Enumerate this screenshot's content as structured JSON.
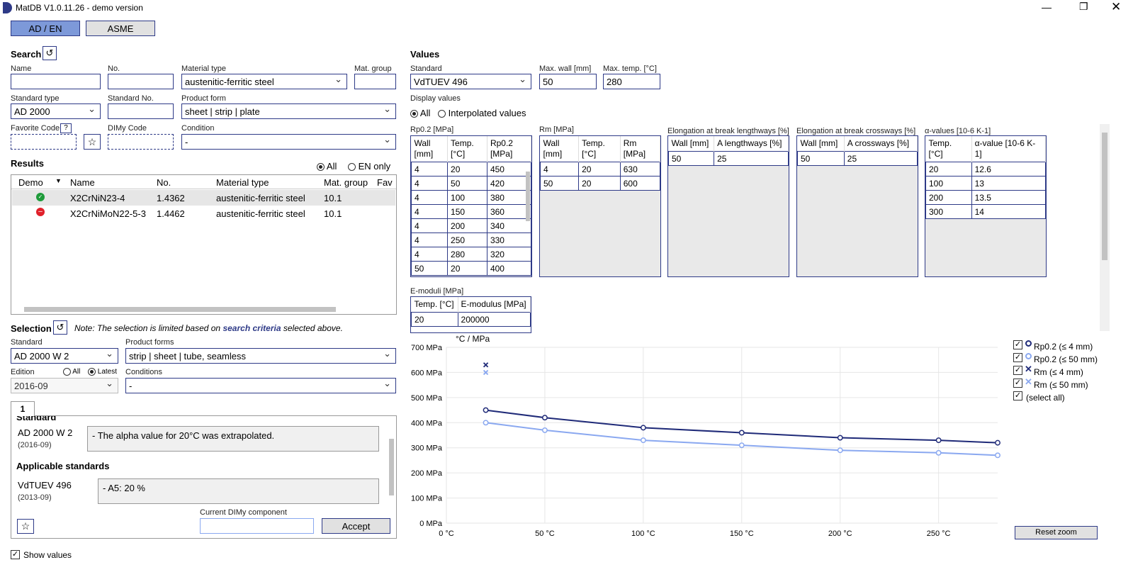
{
  "window": {
    "title": "MatDB V1.0.11.26 - demo version"
  },
  "mode_tabs": [
    "AD / EN",
    "ASME"
  ],
  "search": {
    "title": "Search",
    "name_label": "Name",
    "name_value": "",
    "no_label": "No.",
    "no_value": "",
    "material_type_label": "Material type",
    "material_type_value": "austenitic-ferritic steel",
    "mat_group_label": "Mat. group",
    "mat_group_value": "",
    "standard_type_label": "Standard type",
    "standard_type_value": "AD 2000",
    "standard_no_label": "Standard No.",
    "standard_no_value": "",
    "product_form_label": "Product form",
    "product_form_value": "sheet | strip | plate",
    "favorite_code_label": "Favorite Code",
    "favorite_code_help": "?",
    "dimy_code_label": "DIMy Code",
    "condition_label": "Condition",
    "condition_value": "-"
  },
  "results": {
    "title": "Results",
    "filter_all": "All",
    "filter_en_only": "EN only",
    "columns": [
      "Demo",
      "Name",
      "No.",
      "Material type",
      "Mat. group",
      "Fav"
    ],
    "rows": [
      {
        "demo": "available",
        "name": "X2CrNiN23-4",
        "no": "1.4362",
        "type": "austenitic-ferritic steel",
        "group": "10.1"
      },
      {
        "demo": "unavailable",
        "name": "X2CrNiMoN22-5-3",
        "no": "1.4462",
        "type": "austenitic-ferritic steel",
        "group": "10.1"
      }
    ]
  },
  "selection": {
    "title": "Selection",
    "note_prefix": "Note: The selection is limited based on ",
    "note_link": "search criteria",
    "note_suffix": " selected above.",
    "standard_label": "Standard",
    "standard_value": "AD 2000 W 2",
    "product_forms_label": "Product forms",
    "product_forms_value": "strip | sheet | tube, seamless",
    "edition_label": "Edition",
    "edition_all": "All",
    "edition_latest": "Latest",
    "edition_value": "2016-09",
    "conditions_label": "Conditions",
    "conditions_value": "-",
    "tab": "1",
    "standard_heading": "Standard",
    "std_name": "AD 2000 W 2",
    "std_date": "(2016-09)",
    "std_note": "- The alpha value for 20°C was extrapolated.",
    "applicable_heading": "Applicable standards",
    "app_name": "VdTUEV 496",
    "app_date": "(2013-09)",
    "app_note": "- A5: 20 %",
    "dimy_label": "Current DIMy component",
    "dimy_value": "",
    "accept_label": "Accept",
    "show_values": "Show values"
  },
  "values": {
    "title": "Values",
    "standard_label": "Standard",
    "standard_value": "VdTUEV 496",
    "max_wall_label": "Max. wall [mm]",
    "max_wall_value": "50",
    "max_temp_label": "Max. temp. [°C]",
    "max_temp_value": "280",
    "display_label": "Display values",
    "display_all": "All",
    "display_interp": "Interpolated values",
    "rp_title": "Rp0.2 [MPa]",
    "rp_head": [
      "Wall [mm]",
      "Temp. [°C]",
      "Rp0.2 [MPa]"
    ],
    "rp_rows": [
      [
        "4",
        "20",
        "450"
      ],
      [
        "4",
        "50",
        "420"
      ],
      [
        "4",
        "100",
        "380"
      ],
      [
        "4",
        "150",
        "360"
      ],
      [
        "4",
        "200",
        "340"
      ],
      [
        "4",
        "250",
        "330"
      ],
      [
        "4",
        "280",
        "320"
      ],
      [
        "50",
        "20",
        "400"
      ]
    ],
    "rm_title": "Rm [MPa]",
    "rm_head": [
      "Wall [mm]",
      "Temp. [°C]",
      "Rm [MPa]"
    ],
    "rm_rows": [
      [
        "4",
        "20",
        "630"
      ],
      [
        "50",
        "20",
        "600"
      ]
    ],
    "el_title": "Elongation at break lengthways [%]",
    "el_head": [
      "Wall [mm]",
      "A lengthways [%]"
    ],
    "el_rows": [
      [
        "50",
        "25"
      ]
    ],
    "ec_title": "Elongation at break crossways [%]",
    "ec_head": [
      "Wall [mm]",
      "A crossways [%]"
    ],
    "ec_rows": [
      [
        "50",
        "25"
      ]
    ],
    "alpha_title": "α-values [10-6 K-1]",
    "alpha_head": [
      "Temp. [°C]",
      "α-value [10-6 K-1]"
    ],
    "alpha_rows": [
      [
        "20",
        "12.6"
      ],
      [
        "100",
        "13"
      ],
      [
        "200",
        "13.5"
      ],
      [
        "300",
        "14"
      ]
    ],
    "emod_title": "E-moduli [MPa]",
    "emod_head": [
      "Temp. [°C]",
      "E-modulus [MPa]"
    ],
    "emod_rows": [
      [
        "20",
        "200000"
      ]
    ]
  },
  "chart": {
    "units": "°C /  MPa",
    "reset_zoom": "Reset zoom",
    "select_all": "(select all)"
  },
  "chart_data": {
    "type": "line",
    "xlabel": "°C",
    "ylabel": "MPa",
    "xlim": [
      0,
      280
    ],
    "ylim": [
      0,
      700
    ],
    "xticks": [
      "0 °C",
      "50 °C",
      "100 °C",
      "150 °C",
      "200 °C",
      "250 °C"
    ],
    "yticks": [
      "0 MPa",
      "100 MPa",
      "200 MPa",
      "300 MPa",
      "400 MPa",
      "500 MPa",
      "600 MPa",
      "700 MPa"
    ],
    "series": [
      {
        "name": "Rp0.2 (≤ 4 mm)",
        "marker": "circle",
        "color": "#1f2a78",
        "x": [
          20,
          50,
          100,
          150,
          200,
          250,
          280
        ],
        "y": [
          450,
          420,
          380,
          360,
          340,
          330,
          320
        ]
      },
      {
        "name": "Rp0.2 (≤ 50 mm)",
        "marker": "circle",
        "color": "#8aa8f0",
        "x": [
          20,
          50,
          100,
          150,
          200,
          250,
          280
        ],
        "y": [
          400,
          370,
          330,
          310,
          290,
          280,
          270
        ]
      },
      {
        "name": "Rm (≤ 4 mm)",
        "marker": "x",
        "color": "#1f2a78",
        "x": [
          20
        ],
        "y": [
          630
        ]
      },
      {
        "name": "Rm (≤ 50 mm)",
        "marker": "x",
        "color": "#8aa8f0",
        "x": [
          20
        ],
        "y": [
          600
        ]
      }
    ]
  }
}
